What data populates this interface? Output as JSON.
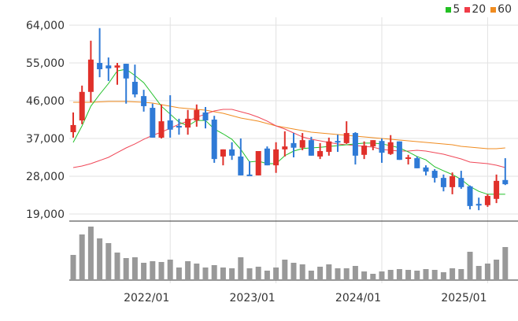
{
  "chart_data": {
    "type": "candlestick",
    "title": "",
    "period": "monthly",
    "colors": {
      "up": "#e0302a",
      "down": "#2f7ad6",
      "ma5": "#22c02a",
      "ma20": "#f04858",
      "ma60": "#f08c20",
      "volume": "#999999",
      "grid": "#e2e2e2"
    },
    "legend": [
      {
        "label": "5",
        "color": "#22c022"
      },
      {
        "label": "20",
        "color": "#f03c48"
      },
      {
        "label": "60",
        "color": "#f08c20"
      }
    ],
    "legend_position": "top-right",
    "y_ticks": [
      {
        "value": 64000,
        "label": "64,000"
      },
      {
        "value": 55000,
        "label": "55,000"
      },
      {
        "value": 46000,
        "label": "46,000"
      },
      {
        "value": 37000,
        "label": "37,000"
      },
      {
        "value": 28000,
        "label": "28,000"
      },
      {
        "value": 19000,
        "label": "19,000"
      }
    ],
    "ylim": [
      19000,
      64000
    ],
    "x_ticks": [
      {
        "index": 11,
        "label": "2022/01"
      },
      {
        "index": 23,
        "label": "2023/01"
      },
      {
        "index": 35,
        "label": "2024/01"
      },
      {
        "index": 47,
        "label": "2025/01"
      }
    ],
    "ohlc": [
      [
        38500,
        43200,
        37200,
        40200
      ],
      [
        41300,
        49600,
        40400,
        48100
      ],
      [
        48100,
        60300,
        45600,
        55800
      ],
      [
        55000,
        63300,
        51600,
        53500
      ],
      [
        54400,
        56300,
        50700,
        53700
      ],
      [
        53900,
        55000,
        49800,
        54400
      ],
      [
        54800,
        54800,
        45300,
        51300
      ],
      [
        50500,
        54600,
        46800,
        47500
      ],
      [
        47100,
        48600,
        43400,
        44700
      ],
      [
        44300,
        45300,
        37200,
        37200
      ],
      [
        37200,
        45100,
        37000,
        41100
      ],
      [
        41300,
        47300,
        37200,
        39100
      ],
      [
        40000,
        41700,
        37900,
        39600
      ],
      [
        39600,
        43800,
        37900,
        41700
      ],
      [
        41300,
        45100,
        39800,
        43800
      ],
      [
        43200,
        44500,
        39400,
        41300
      ],
      [
        41500,
        42400,
        31200,
        32100
      ],
      [
        32700,
        34400,
        30600,
        34400
      ],
      [
        34400,
        36100,
        31900,
        32900
      ],
      [
        32700,
        37000,
        28200,
        28200
      ],
      [
        28400,
        31600,
        28200,
        28200
      ],
      [
        28200,
        34000,
        28200,
        34000
      ],
      [
        34600,
        35100,
        30600,
        30600
      ],
      [
        30600,
        36100,
        28800,
        34400
      ],
      [
        34400,
        38700,
        32700,
        35100
      ],
      [
        35900,
        38300,
        32500,
        34800
      ],
      [
        34800,
        38300,
        34200,
        36600
      ],
      [
        36600,
        37400,
        32900,
        32900
      ],
      [
        32700,
        35900,
        32100,
        34000
      ],
      [
        33800,
        37200,
        32900,
        36300
      ],
      [
        36400,
        37900,
        33800,
        36300
      ],
      [
        35900,
        41100,
        35700,
        38300
      ],
      [
        38300,
        38500,
        30800,
        32900
      ],
      [
        33100,
        36300,
        32100,
        35300
      ],
      [
        35100,
        36600,
        34200,
        36600
      ],
      [
        36400,
        37000,
        31200,
        33600
      ],
      [
        33300,
        37800,
        33100,
        36100
      ],
      [
        36300,
        36300,
        31900,
        31900
      ],
      [
        32300,
        33100,
        30800,
        32500
      ],
      [
        32300,
        32700,
        29900,
        29900
      ],
      [
        30100,
        30600,
        28200,
        29100
      ],
      [
        29300,
        29700,
        26500,
        27600
      ],
      [
        27600,
        28400,
        24400,
        25400
      ],
      [
        25400,
        28900,
        23700,
        28000
      ],
      [
        27600,
        29300,
        25000,
        25400
      ],
      [
        25600,
        25800,
        20100,
        20900
      ],
      [
        21400,
        22900,
        19900,
        21300
      ],
      [
        21100,
        23700,
        20700,
        23300
      ],
      [
        22600,
        28400,
        21600,
        26900
      ],
      [
        27100,
        32300,
        25900,
        26100
      ]
    ],
    "ma5": [
      36060,
      40000,
      44700,
      47500,
      50100,
      53100,
      53500,
      52000,
      50300,
      47500,
      44700,
      42800,
      40900,
      40000,
      41300,
      41300,
      39250,
      38100,
      36800,
      34400,
      31400,
      31600,
      31000,
      31000,
      32900,
      34000,
      34600,
      34750,
      34900,
      35100,
      35300,
      35500,
      35700,
      35900,
      35900,
      35700,
      35300,
      34750,
      33800,
      32700,
      31900,
      30250,
      29300,
      28400,
      27250,
      25560,
      24400,
      23700,
      23700,
      23700
    ],
    "ma20": [
      30060,
      30440,
      31000,
      31750,
      32500,
      33630,
      34750,
      35690,
      36810,
      37750,
      38500,
      39440,
      40380,
      41130,
      42060,
      42810,
      43560,
      43940,
      43940,
      43380,
      42810,
      42060,
      41130,
      40000,
      39250,
      38310,
      37380,
      36810,
      36440,
      36060,
      35690,
      35500,
      35310,
      35130,
      34940,
      34380,
      34190,
      34000,
      34000,
      34190,
      34000,
      33630,
      33250,
      32690,
      32130,
      31380,
      31190,
      31000,
      30630,
      30060
    ],
    "ma60": [
      45630,
      45630,
      45630,
      45720,
      45810,
      45810,
      45810,
      45720,
      45630,
      45440,
      45060,
      44690,
      44310,
      44130,
      43940,
      43750,
      43380,
      43000,
      42440,
      41880,
      41500,
      41130,
      40560,
      40000,
      39630,
      39250,
      38880,
      38500,
      38310,
      38130,
      37940,
      37750,
      37560,
      37380,
      37190,
      37000,
      36810,
      36630,
      36440,
      36250,
      36060,
      35880,
      35690,
      35500,
      35130,
      34940,
      34750,
      34560,
      34560,
      34750
    ],
    "volume_relative": [
      32,
      58,
      68,
      53,
      47,
      35,
      28,
      29,
      22,
      24,
      23,
      26,
      16,
      24,
      21,
      16,
      19,
      16,
      15,
      29,
      15,
      17,
      12,
      16,
      26,
      22,
      20,
      12,
      17,
      20,
      15,
      15,
      18,
      11,
      8,
      11,
      13,
      14,
      13,
      12,
      14,
      13,
      10,
      15,
      14,
      36,
      18,
      21,
      26,
      42
    ]
  }
}
